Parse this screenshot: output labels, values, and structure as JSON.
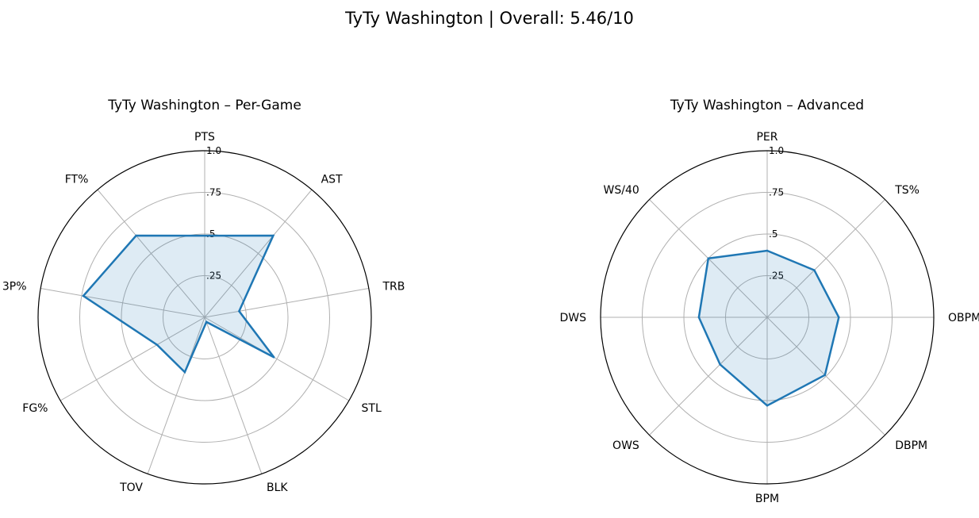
{
  "figure": {
    "title": "TyTy Washington | Overall: 5.46/10"
  },
  "colors": {
    "line": "#1f77b4",
    "fill": "#1f77b4",
    "grid": "#b0b0b0",
    "outline": "#000000"
  },
  "chart_data": [
    {
      "type": "radar",
      "title": "TyTy Washington – Per-Game",
      "rlim": [
        0,
        1
      ],
      "rticks": [
        0.25,
        0.5,
        0.75,
        1.0
      ],
      "rtick_labels": [
        ".25",
        ".5",
        ".75",
        "1.0"
      ],
      "grid": true,
      "categories": [
        "PTS",
        "AST",
        "TRB",
        "STL",
        "BLK",
        "TOV",
        "FG%",
        "3P%",
        "FT%"
      ],
      "values": [
        0.49,
        0.64,
        0.21,
        0.48,
        0.03,
        0.35,
        0.33,
        0.74,
        0.64
      ]
    },
    {
      "type": "radar",
      "title": "TyTy Washington – Advanced",
      "rlim": [
        0,
        1
      ],
      "rticks": [
        0.25,
        0.5,
        0.75,
        1.0
      ],
      "rtick_labels": [
        ".25",
        ".5",
        ".75",
        "1.0"
      ],
      "grid": true,
      "categories": [
        "PER",
        "TS%",
        "OBPM",
        "DBPM",
        "BPM",
        "OWS",
        "DWS",
        "WS/40"
      ],
      "values": [
        0.4,
        0.4,
        0.43,
        0.49,
        0.53,
        0.4,
        0.41,
        0.5
      ]
    }
  ]
}
